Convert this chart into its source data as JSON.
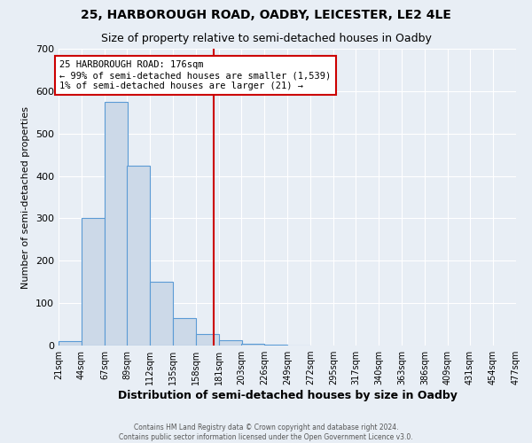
{
  "title1": "25, HARBOROUGH ROAD, OADBY, LEICESTER, LE2 4LE",
  "title2": "Size of property relative to semi-detached houses in Oadby",
  "xlabel": "Distribution of semi-detached houses by size in Oadby",
  "ylabel": "Number of semi-detached properties",
  "footnote": "Contains HM Land Registry data © Crown copyright and database right 2024.\nContains public sector information licensed under the Open Government Licence v3.0.",
  "bin_edges": [
    21,
    44,
    67,
    89,
    112,
    135,
    158,
    181,
    203,
    226,
    249,
    272,
    295,
    317,
    340,
    363,
    386,
    409,
    431,
    454,
    477
  ],
  "bar_heights": [
    10,
    300,
    575,
    425,
    150,
    65,
    28,
    12,
    5,
    2,
    1,
    0,
    0,
    0,
    0,
    0,
    0,
    0,
    0,
    0
  ],
  "bar_facecolor": "#ccd9e8",
  "bar_edgecolor": "#5b9bd5",
  "property_size": 176,
  "vline_color": "#cc0000",
  "annotation_line1": "25 HARBOROUGH ROAD: 176sqm",
  "annotation_line2": "← 99% of semi-detached houses are smaller (1,539)",
  "annotation_line3": "1% of semi-detached houses are larger (21) →",
  "annotation_box_edgecolor": "#cc0000",
  "annotation_box_facecolor": "#ffffff",
  "ylim": [
    0,
    700
  ],
  "yticks": [
    0,
    100,
    200,
    300,
    400,
    500,
    600,
    700
  ],
  "background_color": "#e8eef5",
  "plot_background_color": "#e8eef5",
  "grid_color": "#ffffff",
  "title1_fontsize": 10,
  "title2_fontsize": 9,
  "xlabel_fontsize": 9,
  "ylabel_fontsize": 8,
  "annotation_fontsize": 7.5,
  "tick_fontsize": 7
}
